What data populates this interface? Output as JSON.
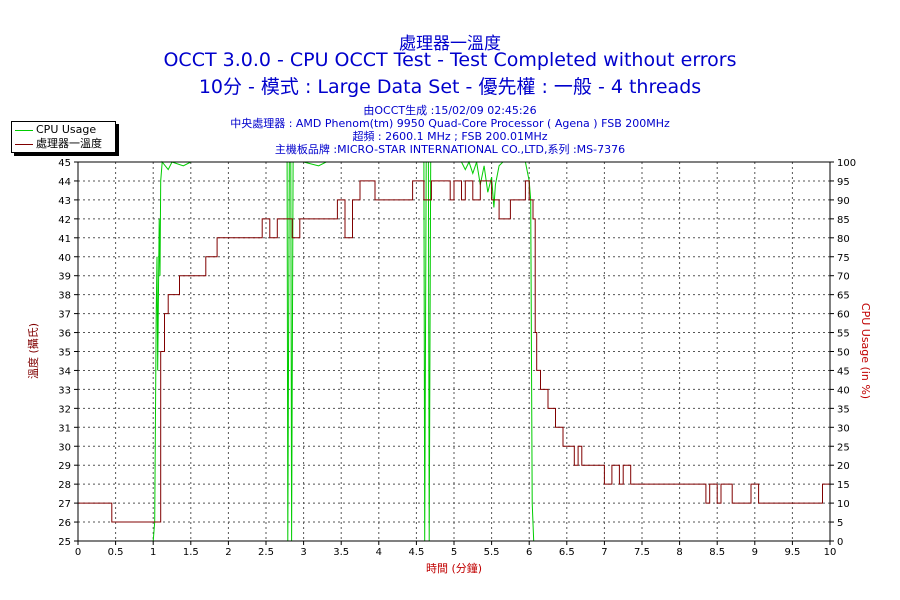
{
  "chart_data": {
    "type": "line",
    "title": "處理器一溫度",
    "subtitle_1": "OCCT 3.0.0 - CPU OCCT Test - Test Completed without errors",
    "subtitle_2": "10分 - 模式 : Large Data Set - 優先權 : 一般 - 4 threads",
    "info": [
      "由OCCT生成 :15/02/09 02:45:26",
      "中央處理器 : AMD Phenom(tm) 9950 Quad-Core Processor ( Agena ) FSB 200MHz",
      "超頻 : 2600.1 MHz ; FSB 200.01MHz",
      "主機板品牌 :MICRO-STAR INTERNATIONAL CO.,LTD,系列 :MS-7376"
    ],
    "xlabel": "時間 (分鐘)",
    "ylabel_left": "溫度 (攝氏)",
    "ylabel_right": "CPU Usage (in %)",
    "xlim": [
      0,
      10
    ],
    "ylim_left": [
      25,
      45
    ],
    "ylim_right": [
      0,
      100
    ],
    "grid": true,
    "legend_position": "top-left",
    "x_ticks": [
      "0",
      "0.5",
      "1",
      "1.5",
      "2",
      "2.5",
      "3",
      "3.5",
      "4",
      "4.5",
      "5",
      "5.5",
      "6",
      "6.5",
      "7",
      "7.5",
      "8",
      "8.5",
      "9",
      "9.5",
      "10"
    ],
    "y_left_ticks": [
      "25",
      "26",
      "27",
      "28",
      "29",
      "30",
      "31",
      "32",
      "33",
      "34",
      "35",
      "36",
      "37",
      "38",
      "39",
      "40",
      "41",
      "42",
      "43",
      "44",
      "45"
    ],
    "y_right_ticks": [
      "0",
      "5",
      "10",
      "15",
      "20",
      "25",
      "30",
      "35",
      "40",
      "45",
      "50",
      "55",
      "60",
      "65",
      "70",
      "75",
      "80",
      "85",
      "90",
      "95",
      "100"
    ],
    "series": [
      {
        "name": "CPU Usage",
        "axis": "right",
        "color": "#00cc00",
        "points": [
          [
            0,
            0
          ],
          [
            1.0,
            0
          ],
          [
            1.02,
            5
          ],
          [
            1.04,
            60
          ],
          [
            1.05,
            75
          ],
          [
            1.06,
            45
          ],
          [
            1.08,
            85
          ],
          [
            1.09,
            70
          ],
          [
            1.1,
            95
          ],
          [
            1.12,
            100
          ],
          [
            1.2,
            98
          ],
          [
            1.25,
            100
          ],
          [
            1.4,
            99
          ],
          [
            1.5,
            100
          ],
          [
            2.0,
            100
          ],
          [
            2.5,
            100
          ],
          [
            2.78,
            100
          ],
          [
            2.79,
            0
          ],
          [
            2.81,
            100
          ],
          [
            2.83,
            100
          ],
          [
            2.84,
            0
          ],
          [
            2.86,
            100
          ],
          [
            3.0,
            100
          ],
          [
            3.2,
            99
          ],
          [
            3.3,
            100
          ],
          [
            3.5,
            100
          ],
          [
            4.0,
            100
          ],
          [
            4.5,
            100
          ],
          [
            4.6,
            100
          ],
          [
            4.61,
            0
          ],
          [
            4.63,
            100
          ],
          [
            4.66,
            100
          ],
          [
            4.67,
            0
          ],
          [
            4.69,
            100
          ],
          [
            4.8,
            100
          ],
          [
            5.0,
            100
          ],
          [
            5.1,
            100
          ],
          [
            5.15,
            98
          ],
          [
            5.2,
            100
          ],
          [
            5.25,
            97
          ],
          [
            5.3,
            100
          ],
          [
            5.35,
            94
          ],
          [
            5.4,
            99
          ],
          [
            5.45,
            92
          ],
          [
            5.5,
            96
          ],
          [
            5.53,
            88
          ],
          [
            5.55,
            94
          ],
          [
            5.6,
            99
          ],
          [
            5.65,
            100
          ],
          [
            5.8,
            100
          ],
          [
            5.95,
            100
          ],
          [
            6.0,
            95
          ],
          [
            6.02,
            90
          ],
          [
            6.04,
            10
          ],
          [
            6.06,
            0
          ],
          [
            6.1,
            0
          ]
        ]
      },
      {
        "name": "處理器一溫度",
        "axis": "left",
        "color": "#800000",
        "points": [
          [
            0,
            27
          ],
          [
            0.45,
            27
          ],
          [
            0.45,
            26
          ],
          [
            1.1,
            26
          ],
          [
            1.1,
            35
          ],
          [
            1.15,
            35
          ],
          [
            1.15,
            37
          ],
          [
            1.2,
            37
          ],
          [
            1.2,
            38
          ],
          [
            1.35,
            38
          ],
          [
            1.35,
            39
          ],
          [
            1.7,
            39
          ],
          [
            1.7,
            40
          ],
          [
            1.85,
            40
          ],
          [
            1.85,
            41
          ],
          [
            2.45,
            41
          ],
          [
            2.45,
            42
          ],
          [
            2.55,
            42
          ],
          [
            2.55,
            41
          ],
          [
            2.65,
            41
          ],
          [
            2.65,
            42
          ],
          [
            2.85,
            42
          ],
          [
            2.85,
            41
          ],
          [
            2.95,
            41
          ],
          [
            2.95,
            42
          ],
          [
            3.45,
            42
          ],
          [
            3.45,
            43
          ],
          [
            3.55,
            43
          ],
          [
            3.55,
            41
          ],
          [
            3.65,
            41
          ],
          [
            3.65,
            43
          ],
          [
            3.75,
            43
          ],
          [
            3.75,
            44
          ],
          [
            3.95,
            44
          ],
          [
            3.95,
            43
          ],
          [
            4.45,
            43
          ],
          [
            4.45,
            44
          ],
          [
            4.6,
            44
          ],
          [
            4.6,
            43
          ],
          [
            4.7,
            43
          ],
          [
            4.7,
            44
          ],
          [
            4.95,
            44
          ],
          [
            4.95,
            43
          ],
          [
            5.0,
            43
          ],
          [
            5.0,
            44
          ],
          [
            5.1,
            44
          ],
          [
            5.1,
            43
          ],
          [
            5.15,
            43
          ],
          [
            5.15,
            44
          ],
          [
            5.25,
            44
          ],
          [
            5.25,
            43
          ],
          [
            5.35,
            43
          ],
          [
            5.35,
            44
          ],
          [
            5.5,
            44
          ],
          [
            5.5,
            43
          ],
          [
            5.6,
            43
          ],
          [
            5.6,
            42
          ],
          [
            5.75,
            42
          ],
          [
            5.75,
            43
          ],
          [
            5.95,
            43
          ],
          [
            5.95,
            44
          ],
          [
            6.0,
            44
          ],
          [
            6.0,
            43
          ],
          [
            6.05,
            43
          ],
          [
            6.05,
            42
          ],
          [
            6.08,
            42
          ],
          [
            6.08,
            36
          ],
          [
            6.1,
            36
          ],
          [
            6.1,
            34
          ],
          [
            6.15,
            34
          ],
          [
            6.15,
            33
          ],
          [
            6.25,
            33
          ],
          [
            6.25,
            32
          ],
          [
            6.35,
            32
          ],
          [
            6.35,
            31
          ],
          [
            6.45,
            31
          ],
          [
            6.45,
            30
          ],
          [
            6.6,
            30
          ],
          [
            6.6,
            29
          ],
          [
            6.65,
            29
          ],
          [
            6.65,
            30
          ],
          [
            6.7,
            30
          ],
          [
            6.7,
            29
          ],
          [
            7.0,
            29
          ],
          [
            7.0,
            28
          ],
          [
            7.1,
            28
          ],
          [
            7.1,
            29
          ],
          [
            7.2,
            29
          ],
          [
            7.2,
            28
          ],
          [
            7.25,
            28
          ],
          [
            7.25,
            29
          ],
          [
            7.35,
            29
          ],
          [
            7.35,
            28
          ],
          [
            8.35,
            28
          ],
          [
            8.35,
            27
          ],
          [
            8.4,
            27
          ],
          [
            8.4,
            28
          ],
          [
            8.5,
            28
          ],
          [
            8.5,
            27
          ],
          [
            8.55,
            27
          ],
          [
            8.55,
            28
          ],
          [
            8.7,
            28
          ],
          [
            8.7,
            27
          ],
          [
            8.95,
            27
          ],
          [
            8.95,
            28
          ],
          [
            9.05,
            28
          ],
          [
            9.05,
            27
          ],
          [
            9.9,
            27
          ],
          [
            9.9,
            28
          ],
          [
            10,
            28
          ]
        ]
      }
    ]
  }
}
